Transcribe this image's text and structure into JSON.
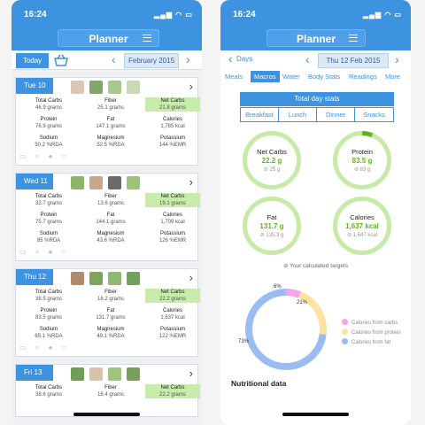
{
  "planner": {
    "status_time": "16:24",
    "title": "Planner",
    "today_label": "Today",
    "month_label": "February 2015",
    "days": [
      {
        "label": "Tue 10",
        "cells": [
          [
            "Total Carbs",
            "46.9 grams"
          ],
          [
            "Fiber",
            "25.1 grams"
          ],
          [
            "Net Carbs",
            "21.8 grams"
          ],
          [
            "Protein",
            "76.9 grams"
          ],
          [
            "Fat",
            "147.1 grams"
          ],
          [
            "Calories",
            "1,785 kcal"
          ],
          [
            "Sodium",
            "50.2 %RDA"
          ],
          [
            "Magnesium",
            "52.5 %RDA"
          ],
          [
            "Potassium",
            "144 %EMR"
          ]
        ]
      },
      {
        "label": "Wed 11",
        "cells": [
          [
            "Total Carbs",
            "32.7 grams"
          ],
          [
            "Fiber",
            "13.6 grams"
          ],
          [
            "Net Carbs",
            "19.1 grams"
          ],
          [
            "Protein",
            "75.7 grams"
          ],
          [
            "Fat",
            "144.1 grams"
          ],
          [
            "Calories",
            "1,709 kcal"
          ],
          [
            "Sodium",
            "85 %RDA"
          ],
          [
            "Magnesium",
            "43.6 %RDA"
          ],
          [
            "Potassium",
            "126 %EMR"
          ]
        ]
      },
      {
        "label": "Thu 12",
        "cells": [
          [
            "Total Carbs",
            "38.5 grams"
          ],
          [
            "Fiber",
            "16.2 grams"
          ],
          [
            "Net Carbs",
            "22.2 grams"
          ],
          [
            "Protein",
            "83.5 grams"
          ],
          [
            "Fat",
            "131.7 grams"
          ],
          [
            "Calories",
            "1,637 kcal"
          ],
          [
            "Sodium",
            "65.1 %RDA"
          ],
          [
            "Magnesium",
            "49.1 %RDA"
          ],
          [
            "Potassium",
            "122 %EMR"
          ]
        ]
      },
      {
        "label": "Fri 13",
        "cells": [
          [
            "Total Carbs",
            "38.6 grams"
          ],
          [
            "Fiber",
            "16.4 grams"
          ],
          [
            "Net Carbs",
            "22.2 grams"
          ]
        ]
      }
    ]
  },
  "macros": {
    "status_time": "16:24",
    "title": "Planner",
    "back_label": "Days",
    "date_label": "Thu 12 Feb 2015",
    "tabs": [
      "Meals",
      "Macros",
      "Water",
      "Body Stats",
      "Readings",
      "More"
    ],
    "active_tab": "Macros",
    "day_stats_label": "Total day stats",
    "meal_tabs": [
      "Breakfast",
      "Lunch",
      "Dinner",
      "Snacks"
    ],
    "rings": [
      {
        "label": "Net Carbs",
        "value": "22.2 g",
        "target": "⊘ 25 g",
        "progress": 0.89
      },
      {
        "label": "Protein",
        "value": "83.5 g",
        "target": "⊘ 83 g",
        "progress": 1.0
      },
      {
        "label": "Fat",
        "value": "131.7 g",
        "target": "⊘ 135.3 g",
        "progress": 0.97
      },
      {
        "label": "Calories",
        "value": "1,637 kcal",
        "target": "⊘ 1,647 kcal",
        "progress": 0.99
      }
    ],
    "targets_note": "⊘ Your calculated targets",
    "donut": {
      "percents": [
        "6%",
        "21%",
        "73%"
      ],
      "legend": [
        "Calories from carbs",
        "Calories from protein",
        "Calories from fat"
      ],
      "values": [
        6,
        21,
        73
      ],
      "colors": [
        "#f5a4e6",
        "#fde3a3",
        "#9bbcf2"
      ]
    },
    "nutritional_data_label": "Nutritional data"
  }
}
